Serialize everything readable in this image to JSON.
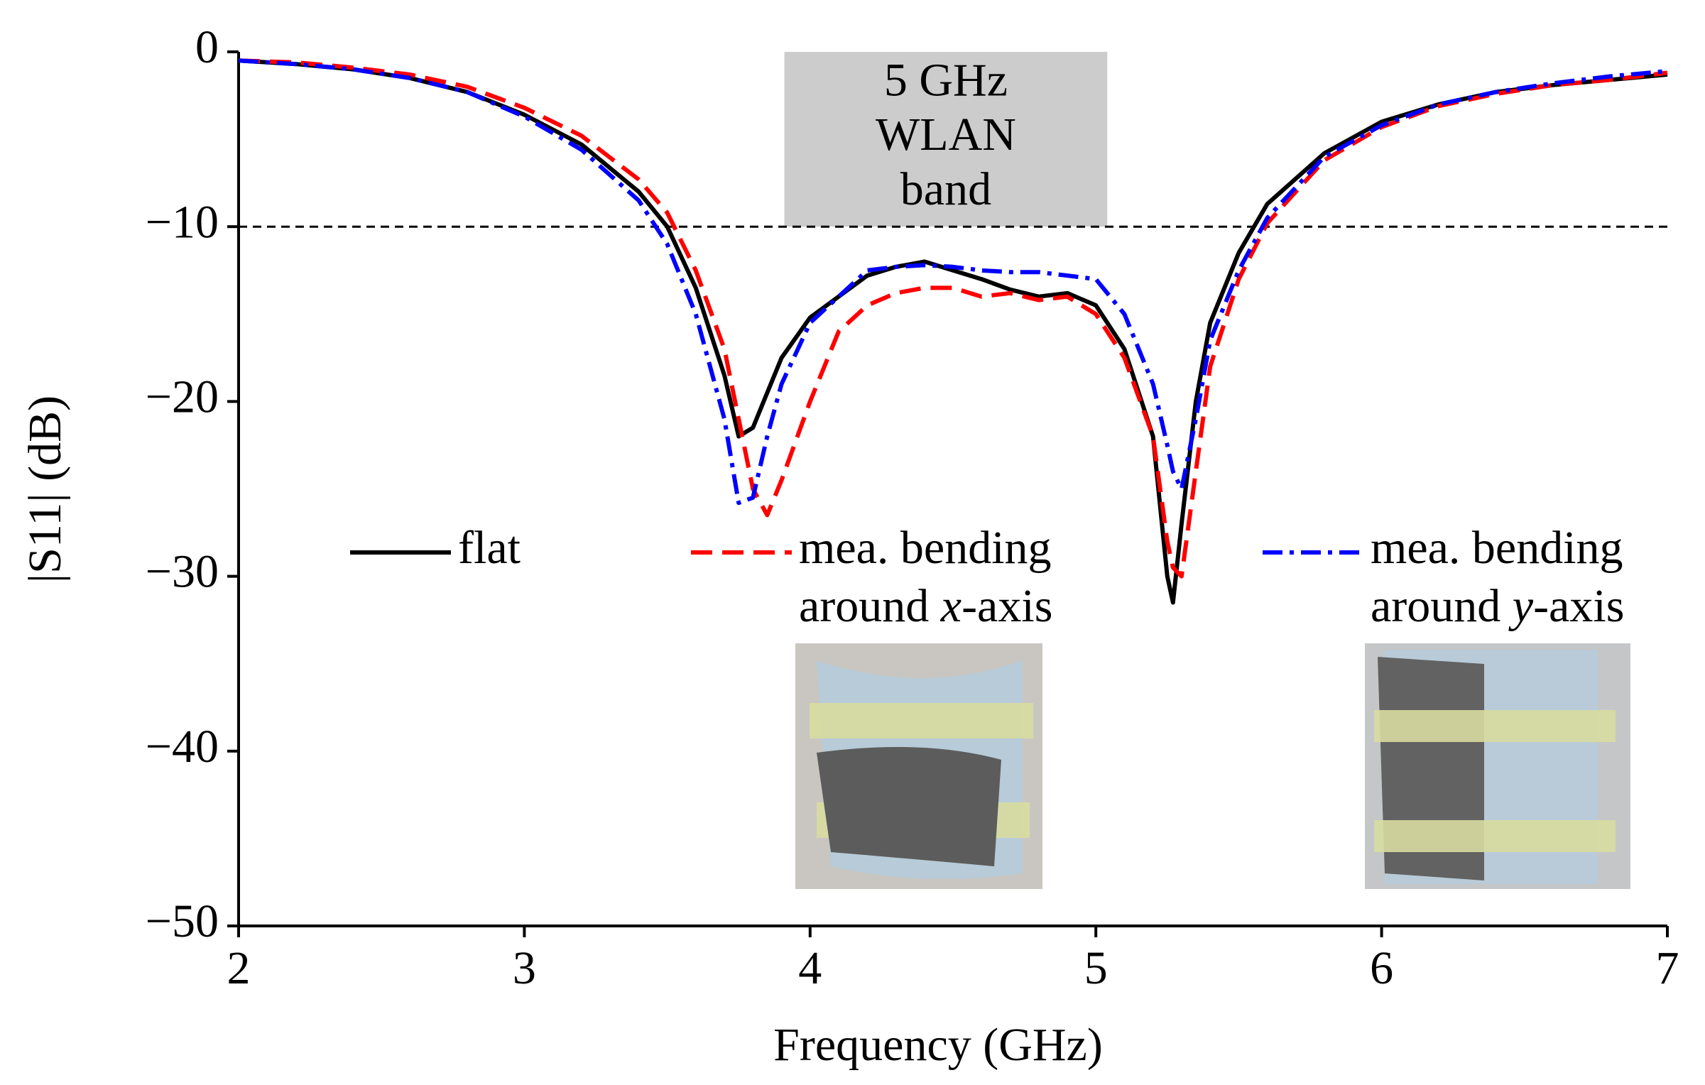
{
  "chart_data": {
    "type": "line",
    "xlabel": "Frequency (GHz)",
    "ylabel": "|S11| (dB)",
    "x": [
      2.0,
      2.2,
      2.4,
      2.6,
      2.8,
      3.0,
      3.2,
      3.4,
      3.5,
      3.6,
      3.7,
      3.75,
      3.8,
      3.85,
      3.9,
      4.0,
      4.1,
      4.2,
      4.3,
      4.4,
      4.5,
      4.6,
      4.7,
      4.8,
      4.9,
      5.0,
      5.1,
      5.2,
      5.25,
      5.27,
      5.3,
      5.35,
      5.4,
      5.5,
      5.6,
      5.8,
      6.0,
      6.2,
      6.4,
      6.6,
      6.8,
      7.0
    ],
    "series": [
      {
        "name": "flat",
        "color": "#000000",
        "dash": "solid",
        "values": [
          -0.5,
          -0.7,
          -1.0,
          -1.5,
          -2.3,
          -3.6,
          -5.3,
          -8.0,
          -10.0,
          -13.5,
          -18.5,
          -22,
          -21.5,
          -19.5,
          -17.5,
          -15.2,
          -14.0,
          -12.8,
          -12.3,
          -12.0,
          -12.5,
          -13.0,
          -13.6,
          -14.0,
          -13.8,
          -14.5,
          -17.0,
          -22,
          -30,
          -31.5,
          -27,
          -20,
          -15.5,
          -11.5,
          -8.7,
          -5.8,
          -4.0,
          -3.0,
          -2.3,
          -1.9,
          -1.6,
          -1.3
        ]
      },
      {
        "name": "mea. bending around x-axis",
        "color": "#ff0000",
        "dash": "dashed",
        "values": [
          -0.5,
          -0.6,
          -0.9,
          -1.3,
          -2.0,
          -3.2,
          -4.8,
          -7.3,
          -9.2,
          -12.5,
          -17.0,
          -21,
          -25,
          -26.5,
          -24.5,
          -20,
          -16,
          -14.5,
          -13.8,
          -13.5,
          -13.5,
          -14.0,
          -13.8,
          -14.2,
          -14.0,
          -15.0,
          -17.5,
          -22,
          -28,
          -29.5,
          -30,
          -24,
          -18,
          -13,
          -9.8,
          -6.2,
          -4.3,
          -3.1,
          -2.4,
          -1.9,
          -1.6,
          -1.2
        ]
      },
      {
        "name": "mea. bending around y-axis",
        "color": "#0000ff",
        "dash": "dashdot",
        "values": [
          -0.5,
          -0.7,
          -1.0,
          -1.5,
          -2.3,
          -3.7,
          -5.6,
          -8.5,
          -11,
          -15,
          -21,
          -25.8,
          -25.5,
          -22,
          -19,
          -15.5,
          -14.0,
          -12.5,
          -12.3,
          -12.2,
          -12.3,
          -12.5,
          -12.6,
          -12.6,
          -12.8,
          -13.0,
          -15,
          -19,
          -22.5,
          -24,
          -25,
          -21,
          -16.5,
          -12.5,
          -9.5,
          -6.0,
          -4.2,
          -3.0,
          -2.3,
          -1.8,
          -1.4,
          -1.1
        ]
      }
    ],
    "xlim": [
      2,
      7
    ],
    "xticks": [
      2,
      3,
      4,
      5,
      6,
      7
    ],
    "ylim": [
      -50,
      0
    ],
    "yticks": [
      {
        "value": -50,
        "label": "−50"
      },
      {
        "value": -40,
        "label": "−40"
      },
      {
        "value": -30,
        "label": "−30"
      },
      {
        "value": -20,
        "label": "−20"
      },
      {
        "value": -10,
        "label": "−10"
      },
      0
    ],
    "hline": -10,
    "band": {
      "x": [
        3.91,
        5.04
      ],
      "y": [
        -10,
        0
      ],
      "color": "#cccccc",
      "label": [
        "5 GHz",
        "WLAN",
        "band"
      ]
    }
  }
}
